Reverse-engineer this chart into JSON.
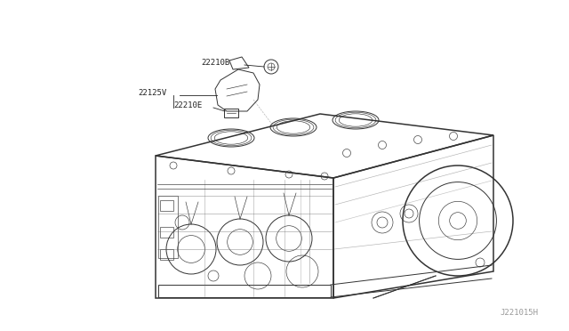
{
  "bg_color": "#ffffff",
  "figsize": [
    6.4,
    3.72
  ],
  "dpi": 100,
  "label_22210B": "22210B",
  "label_22125V": "22125V",
  "label_22210E": "22210E",
  "watermark": "J221015H",
  "text_color": "#222222",
  "line_color": "#333333",
  "line_color_light": "#666666",
  "font_size_labels": 6.5,
  "font_size_watermark": 6.5,
  "lw_thick": 1.1,
  "lw_med": 0.7,
  "lw_thin": 0.45
}
